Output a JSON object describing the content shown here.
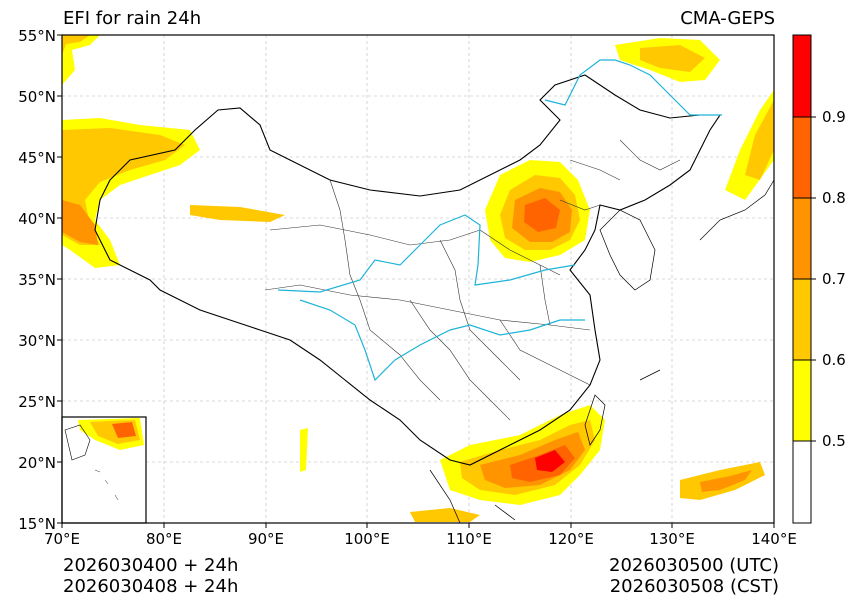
{
  "header": {
    "title_left": "EFI for rain 24h",
    "title_right": "CMA-GEPS"
  },
  "map": {
    "latitude_ticks": [
      {
        "value": 55,
        "label": "55°N"
      },
      {
        "value": 50,
        "label": "50°N"
      },
      {
        "value": 45,
        "label": "45°N"
      },
      {
        "value": 40,
        "label": "40°N"
      },
      {
        "value": 35,
        "label": "35°N"
      },
      {
        "value": 30,
        "label": "30°N"
      },
      {
        "value": 25,
        "label": "25°N"
      },
      {
        "value": 20,
        "label": "20°N"
      },
      {
        "value": 15,
        "label": "15°N"
      }
    ],
    "longitude_ticks": [
      {
        "value": 70,
        "label": "70°E"
      },
      {
        "value": 80,
        "label": "80°E"
      },
      {
        "value": 90,
        "label": "90°E"
      },
      {
        "value": 100,
        "label": "100°E"
      },
      {
        "value": 110,
        "label": "110°E"
      },
      {
        "value": 120,
        "label": "120°E"
      },
      {
        "value": 130,
        "label": "130°E"
      },
      {
        "value": 140,
        "label": "140°E"
      }
    ],
    "extent": {
      "lon_min": 70,
      "lon_max": 140,
      "lat_min": 15,
      "lat_max": 55
    },
    "grid": true,
    "inset": "south-china-sea",
    "colors": {
      "coastline": "#000000",
      "province_border": "#333333",
      "river": "#1eb4d8",
      "grid": "#cccccc"
    }
  },
  "colorbar": {
    "bins": [
      {
        "from": 0.4,
        "to": 0.5,
        "color": "#ffffff"
      },
      {
        "from": 0.5,
        "to": 0.6,
        "color": "#ffff00"
      },
      {
        "from": 0.6,
        "to": 0.7,
        "color": "#ffc800"
      },
      {
        "from": 0.7,
        "to": 0.8,
        "color": "#ff9400"
      },
      {
        "from": 0.8,
        "to": 0.9,
        "color": "#ff6400"
      },
      {
        "from": 0.9,
        "to": 1.0,
        "color": "#ff0000"
      }
    ],
    "labels": [
      "0.5",
      "0.6",
      "0.7",
      "0.8",
      "0.9"
    ]
  },
  "footer": {
    "left_line1": "2026030400 + 24h",
    "left_line2": "2026030408 + 24h",
    "right_line1": "2026030500 (UTC)",
    "right_line2": "2026030508 (CST)"
  }
}
